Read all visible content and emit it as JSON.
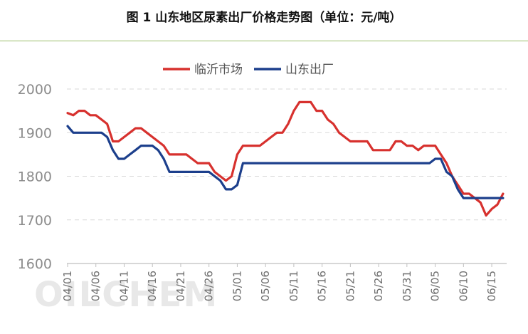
{
  "chart_data": {
    "type": "line",
    "title": "图 1  山东地区尿素出厂价格走势图（单位：元/吨）",
    "watermark": "OILCHEM",
    "xlabel": "",
    "ylabel": "",
    "ylim": [
      1600,
      2000
    ],
    "yticks": [
      1600,
      1700,
      1800,
      1900,
      2000
    ],
    "grid": true,
    "legend_position": "top",
    "x_start": "2024-04-01",
    "x_end": "2024-06-16",
    "xticks": [
      "04/01",
      "04/06",
      "04/11",
      "04/16",
      "04/21",
      "04/26",
      "05/01",
      "05/06",
      "05/11",
      "05/16",
      "05/21",
      "05/26",
      "05/31",
      "06/05",
      "06/10",
      "06/15"
    ],
    "series": [
      {
        "name": "临沂市场",
        "color": "#d7312e",
        "points": [
          [
            "2024-04-01",
            1945
          ],
          [
            "2024-04-02",
            1940
          ],
          [
            "2024-04-03",
            1950
          ],
          [
            "2024-04-04",
            1950
          ],
          [
            "2024-04-05",
            1940
          ],
          [
            "2024-04-06",
            1940
          ],
          [
            "2024-04-07",
            1930
          ],
          [
            "2024-04-08",
            1920
          ],
          [
            "2024-04-09",
            1880
          ],
          [
            "2024-04-10",
            1880
          ],
          [
            "2024-04-11",
            1890
          ],
          [
            "2024-04-12",
            1900
          ],
          [
            "2024-04-13",
            1910
          ],
          [
            "2024-04-14",
            1910
          ],
          [
            "2024-04-15",
            1900
          ],
          [
            "2024-04-16",
            1890
          ],
          [
            "2024-04-17",
            1880
          ],
          [
            "2024-04-18",
            1870
          ],
          [
            "2024-04-19",
            1850
          ],
          [
            "2024-04-20",
            1850
          ],
          [
            "2024-04-21",
            1850
          ],
          [
            "2024-04-22",
            1850
          ],
          [
            "2024-04-23",
            1840
          ],
          [
            "2024-04-24",
            1830
          ],
          [
            "2024-04-25",
            1830
          ],
          [
            "2024-04-26",
            1830
          ],
          [
            "2024-04-27",
            1810
          ],
          [
            "2024-04-28",
            1800
          ],
          [
            "2024-04-29",
            1790
          ],
          [
            "2024-04-30",
            1800
          ],
          [
            "2024-05-01",
            1850
          ],
          [
            "2024-05-02",
            1870
          ],
          [
            "2024-05-03",
            1870
          ],
          [
            "2024-05-04",
            1870
          ],
          [
            "2024-05-05",
            1870
          ],
          [
            "2024-05-06",
            1880
          ],
          [
            "2024-05-07",
            1890
          ],
          [
            "2024-05-08",
            1900
          ],
          [
            "2024-05-09",
            1900
          ],
          [
            "2024-05-10",
            1920
          ],
          [
            "2024-05-11",
            1950
          ],
          [
            "2024-05-12",
            1970
          ],
          [
            "2024-05-13",
            1970
          ],
          [
            "2024-05-14",
            1970
          ],
          [
            "2024-05-15",
            1950
          ],
          [
            "2024-05-16",
            1950
          ],
          [
            "2024-05-17",
            1930
          ],
          [
            "2024-05-18",
            1920
          ],
          [
            "2024-05-19",
            1900
          ],
          [
            "2024-05-20",
            1890
          ],
          [
            "2024-05-21",
            1880
          ],
          [
            "2024-05-22",
            1880
          ],
          [
            "2024-05-23",
            1880
          ],
          [
            "2024-05-24",
            1880
          ],
          [
            "2024-05-25",
            1860
          ],
          [
            "2024-05-26",
            1860
          ],
          [
            "2024-05-27",
            1860
          ],
          [
            "2024-05-28",
            1860
          ],
          [
            "2024-05-29",
            1880
          ],
          [
            "2024-05-30",
            1880
          ],
          [
            "2024-05-31",
            1870
          ],
          [
            "2024-06-01",
            1870
          ],
          [
            "2024-06-02",
            1860
          ],
          [
            "2024-06-03",
            1870
          ],
          [
            "2024-06-04",
            1870
          ],
          [
            "2024-06-05",
            1870
          ],
          [
            "2024-06-06",
            1850
          ],
          [
            "2024-06-07",
            1830
          ],
          [
            "2024-06-08",
            1800
          ],
          [
            "2024-06-09",
            1780
          ],
          [
            "2024-06-10",
            1760
          ],
          [
            "2024-06-11",
            1760
          ],
          [
            "2024-06-12",
            1750
          ],
          [
            "2024-06-13",
            1740
          ],
          [
            "2024-06-14",
            1710
          ],
          [
            "2024-06-15",
            1725
          ],
          [
            "2024-06-16",
            1735
          ],
          [
            "2024-06-17",
            1760
          ]
        ]
      },
      {
        "name": "山东出厂",
        "color": "#1c3f8c",
        "points": [
          [
            "2024-04-01",
            1915
          ],
          [
            "2024-04-02",
            1900
          ],
          [
            "2024-04-03",
            1900
          ],
          [
            "2024-04-04",
            1900
          ],
          [
            "2024-04-05",
            1900
          ],
          [
            "2024-04-06",
            1900
          ],
          [
            "2024-04-07",
            1900
          ],
          [
            "2024-04-08",
            1890
          ],
          [
            "2024-04-09",
            1860
          ],
          [
            "2024-04-10",
            1840
          ],
          [
            "2024-04-11",
            1840
          ],
          [
            "2024-04-12",
            1850
          ],
          [
            "2024-04-13",
            1860
          ],
          [
            "2024-04-14",
            1870
          ],
          [
            "2024-04-15",
            1870
          ],
          [
            "2024-04-16",
            1870
          ],
          [
            "2024-04-17",
            1860
          ],
          [
            "2024-04-18",
            1840
          ],
          [
            "2024-04-19",
            1810
          ],
          [
            "2024-04-20",
            1810
          ],
          [
            "2024-04-21",
            1810
          ],
          [
            "2024-04-22",
            1810
          ],
          [
            "2024-04-23",
            1810
          ],
          [
            "2024-04-24",
            1810
          ],
          [
            "2024-04-25",
            1810
          ],
          [
            "2024-04-26",
            1810
          ],
          [
            "2024-04-27",
            1800
          ],
          [
            "2024-04-28",
            1790
          ],
          [
            "2024-04-29",
            1770
          ],
          [
            "2024-04-30",
            1770
          ],
          [
            "2024-05-01",
            1780
          ],
          [
            "2024-05-02",
            1830
          ],
          [
            "2024-05-03",
            1830
          ],
          [
            "2024-05-04",
            1830
          ],
          [
            "2024-05-05",
            1830
          ],
          [
            "2024-05-06",
            1830
          ],
          [
            "2024-05-07",
            1830
          ],
          [
            "2024-05-08",
            1830
          ],
          [
            "2024-05-09",
            1830
          ],
          [
            "2024-05-10",
            1830
          ],
          [
            "2024-05-11",
            1830
          ],
          [
            "2024-05-12",
            1830
          ],
          [
            "2024-05-13",
            1830
          ],
          [
            "2024-05-14",
            1830
          ],
          [
            "2024-05-15",
            1830
          ],
          [
            "2024-05-16",
            1830
          ],
          [
            "2024-05-17",
            1830
          ],
          [
            "2024-05-18",
            1830
          ],
          [
            "2024-05-19",
            1830
          ],
          [
            "2024-05-20",
            1830
          ],
          [
            "2024-05-21",
            1830
          ],
          [
            "2024-05-22",
            1830
          ],
          [
            "2024-05-23",
            1830
          ],
          [
            "2024-05-24",
            1830
          ],
          [
            "2024-05-25",
            1830
          ],
          [
            "2024-05-26",
            1830
          ],
          [
            "2024-05-27",
            1830
          ],
          [
            "2024-05-28",
            1830
          ],
          [
            "2024-05-29",
            1830
          ],
          [
            "2024-05-30",
            1830
          ],
          [
            "2024-05-31",
            1830
          ],
          [
            "2024-06-01",
            1830
          ],
          [
            "2024-06-02",
            1830
          ],
          [
            "2024-06-03",
            1830
          ],
          [
            "2024-06-04",
            1830
          ],
          [
            "2024-06-05",
            1840
          ],
          [
            "2024-06-06",
            1840
          ],
          [
            "2024-06-07",
            1810
          ],
          [
            "2024-06-08",
            1800
          ],
          [
            "2024-06-09",
            1770
          ],
          [
            "2024-06-10",
            1750
          ],
          [
            "2024-06-11",
            1750
          ],
          [
            "2024-06-12",
            1750
          ],
          [
            "2024-06-13",
            1750
          ],
          [
            "2024-06-14",
            1750
          ],
          [
            "2024-06-15",
            1750
          ],
          [
            "2024-06-16",
            1750
          ],
          [
            "2024-06-17",
            1750
          ]
        ]
      }
    ]
  }
}
